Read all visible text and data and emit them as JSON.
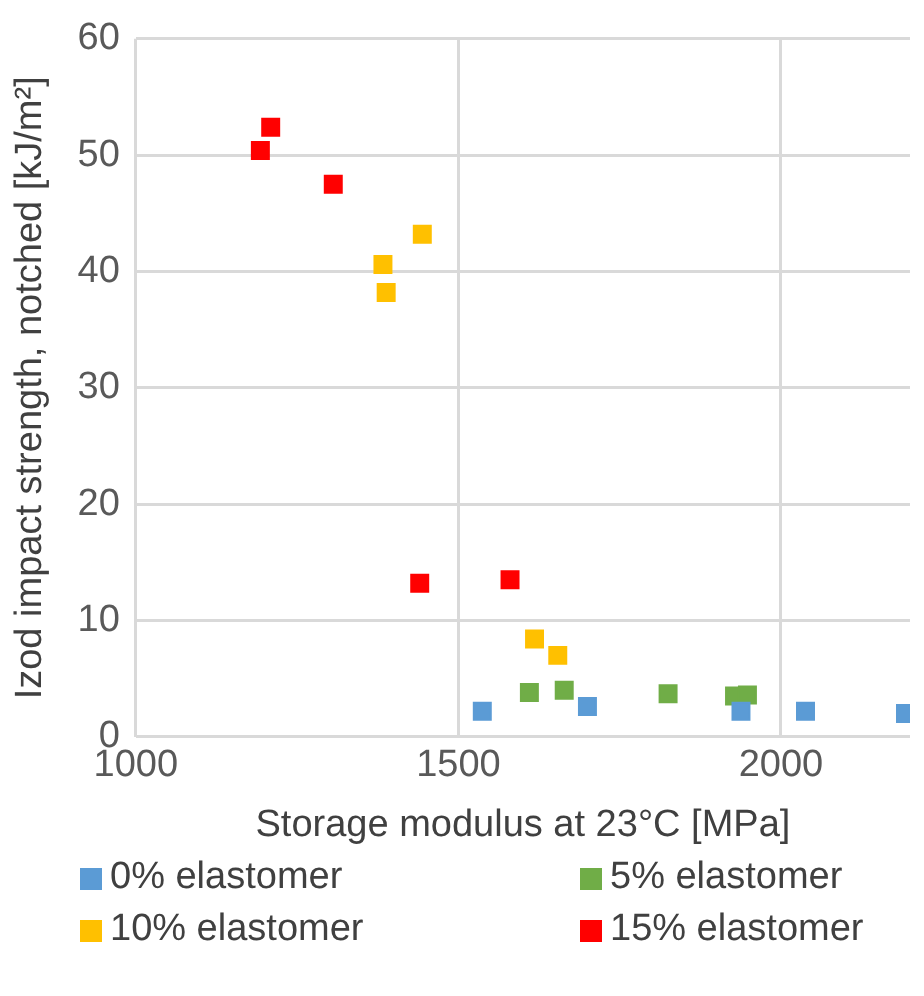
{
  "chart_data": {
    "type": "scatter",
    "xlabel": "Storage modulus at 23°C [MPa]",
    "ylabel": "Izod impact strength, notched [kJ/m²]",
    "xlim": [
      1000,
      2200
    ],
    "xticks": [
      1000,
      1500,
      2000
    ],
    "ylim": [
      0,
      60
    ],
    "yticks": [
      0,
      10,
      20,
      30,
      40,
      50,
      60
    ],
    "grid": true,
    "legend": "bottom",
    "marker": "square",
    "series": [
      {
        "name": "0% elastomer",
        "color": "#5b9bd5",
        "x": [
          1537,
          1700,
          1938,
          2038,
          2193
        ],
        "values": [
          2.2,
          2.6,
          2.2,
          2.2,
          2.0
        ]
      },
      {
        "name": "5% elastomer",
        "color": "#70ad47",
        "x": [
          1610,
          1664,
          1825,
          1928,
          1948
        ],
        "values": [
          3.8,
          4.0,
          3.7,
          3.5,
          3.6
        ]
      },
      {
        "name": "10% elastomer",
        "color": "#ffc000",
        "x": [
          1383,
          1388,
          1444,
          1618,
          1654
        ],
        "values": [
          40.6,
          38.2,
          43.2,
          8.4,
          7.0
        ]
      },
      {
        "name": "15% elastomer",
        "color": "#ff0000",
        "x": [
          1193,
          1209,
          1306,
          1440,
          1580
        ],
        "values": [
          50.4,
          52.4,
          47.5,
          13.2,
          13.5
        ]
      }
    ]
  }
}
